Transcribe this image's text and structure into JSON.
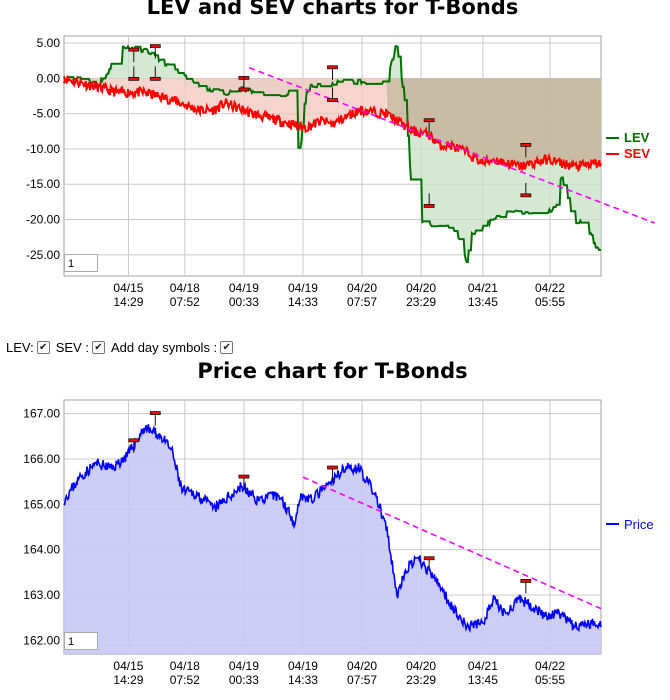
{
  "controls": {
    "lev_label": "LEV:",
    "sev_label": "SEV :",
    "day_label": "Add day symbols :",
    "check_glyph": "✔"
  },
  "zoom_inputs": [
    "1",
    "1"
  ],
  "chart_data": [
    {
      "type": "line",
      "title": "LEV and SEV charts for T-Bonds",
      "ylim": [
        -28,
        6
      ],
      "yticks": [
        5,
        0,
        -5,
        -10,
        -15,
        -20,
        -25
      ],
      "ytick_labels": [
        "5.00",
        "0.00",
        "-5.00",
        "-10.00",
        "-15.00",
        "-20.00",
        "-25.00"
      ],
      "x_ticks": [
        {
          "x": 0.12,
          "date": "04/15",
          "time": "14:29"
        },
        {
          "x": 0.225,
          "date": "04/18",
          "time": "07:52"
        },
        {
          "x": 0.335,
          "date": "04/19",
          "time": "00:33"
        },
        {
          "x": 0.445,
          "date": "04/19",
          "time": "14:33"
        },
        {
          "x": 0.555,
          "date": "04/20",
          "time": "07:57"
        },
        {
          "x": 0.665,
          "date": "04/20",
          "time": "23:29"
        },
        {
          "x": 0.78,
          "date": "04/21",
          "time": "13:45"
        },
        {
          "x": 0.905,
          "date": "04/22",
          "time": "05:55"
        }
      ],
      "legend_position": "right",
      "series": [
        {
          "name": "LEV",
          "color": "#007000",
          "x": [
            0,
            0.03,
            0.06,
            0.075,
            0.09,
            0.1,
            0.15,
            0.2,
            0.22,
            0.26,
            0.3,
            0.335,
            0.37,
            0.38,
            0.42,
            0.43,
            0.44,
            0.45,
            0.46,
            0.48,
            0.52,
            0.58,
            0.6,
            0.62,
            0.63,
            0.635,
            0.64,
            0.65,
            0.66,
            0.68,
            0.7,
            0.72,
            0.74,
            0.75,
            0.76,
            0.78,
            0.8,
            0.82,
            0.85,
            0.88,
            0.9,
            0.92,
            0.925,
            0.94,
            0.95,
            0.97,
            0.99,
            1.0
          ],
          "values": [
            0,
            0,
            -1,
            0,
            2,
            4.5,
            4,
            1.5,
            0.5,
            -1.5,
            -2,
            -1.5,
            -2,
            -3,
            -2,
            -8,
            -11,
            -2,
            -1,
            -1,
            -0.5,
            -0.5,
            0,
            5,
            -1,
            -3,
            -8,
            -18,
            -20.5,
            -20.5,
            -21,
            -21,
            -23,
            -26,
            -22,
            -21,
            -20,
            -19,
            -19,
            -19,
            -19,
            -18,
            -14,
            -17,
            -21,
            -20,
            -24,
            -24
          ]
        },
        {
          "name": "SEV",
          "color": "#ff0000",
          "x": [
            0,
            0.05,
            0.1,
            0.15,
            0.2,
            0.25,
            0.28,
            0.3,
            0.35,
            0.4,
            0.45,
            0.48,
            0.5,
            0.55,
            0.6,
            0.62,
            0.65,
            0.68,
            0.7,
            0.72,
            0.75,
            0.78,
            0.8,
            0.85,
            0.9,
            0.95,
            1.0
          ],
          "values": [
            0,
            -1,
            -2,
            -2,
            -3,
            -4.5,
            -4.5,
            -3.5,
            -5,
            -6,
            -7,
            -6,
            -6.5,
            -4.5,
            -5,
            -6,
            -7.5,
            -8,
            -9.5,
            -9.5,
            -10.5,
            -12,
            -11.5,
            -12.5,
            -11.5,
            -12.5,
            -12
          ]
        }
      ],
      "trend_line": {
        "x": [
          0.345,
          1.1
        ],
        "values": [
          1.5,
          -20.5
        ],
        "color": "#ff00ff"
      },
      "day_symbols_top": [
        {
          "x": 0.13,
          "value": 4
        },
        {
          "x": 0.17,
          "value": 4.5
        },
        {
          "x": 0.335,
          "value": 0
        },
        {
          "x": 0.5,
          "value": 1.5
        },
        {
          "x": 0.68,
          "value": -6
        },
        {
          "x": 0.86,
          "value": -9.5
        }
      ],
      "day_symbols_bottom": [
        {
          "x": 0.13,
          "value": 0
        },
        {
          "x": 0.17,
          "value": 0
        },
        {
          "x": 0.335,
          "value": -1.5
        },
        {
          "x": 0.5,
          "value": -3
        },
        {
          "x": 0.68,
          "value": -18
        },
        {
          "x": 0.86,
          "value": -16.5
        }
      ]
    },
    {
      "type": "area",
      "title": "Price chart for T-Bonds",
      "ylim": [
        161.7,
        167.3
      ],
      "yticks": [
        167,
        166,
        165,
        164,
        163,
        162
      ],
      "ytick_labels": [
        "167.00",
        "166.00",
        "165.00",
        "164.00",
        "163.00",
        "162.00"
      ],
      "x_ticks": [
        {
          "x": 0.12,
          "date": "04/15",
          "time": "14:29"
        },
        {
          "x": 0.225,
          "date": "04/18",
          "time": "07:52"
        },
        {
          "x": 0.335,
          "date": "04/19",
          "time": "00:33"
        },
        {
          "x": 0.445,
          "date": "04/19",
          "time": "14:33"
        },
        {
          "x": 0.555,
          "date": "04/20",
          "time": "07:57"
        },
        {
          "x": 0.665,
          "date": "04/20",
          "time": "23:29"
        },
        {
          "x": 0.78,
          "date": "04/21",
          "time": "13:45"
        },
        {
          "x": 0.905,
          "date": "04/22",
          "time": "05:55"
        }
      ],
      "legend_position": "right",
      "series": [
        {
          "name": "Price",
          "color": "#0000ff",
          "x": [
            0,
            0.03,
            0.06,
            0.09,
            0.12,
            0.15,
            0.18,
            0.2,
            0.22,
            0.25,
            0.28,
            0.3,
            0.33,
            0.36,
            0.4,
            0.42,
            0.43,
            0.44,
            0.46,
            0.5,
            0.52,
            0.55,
            0.58,
            0.6,
            0.62,
            0.64,
            0.66,
            0.68,
            0.7,
            0.72,
            0.75,
            0.78,
            0.8,
            0.82,
            0.85,
            0.88,
            0.9,
            0.92,
            0.95,
            1.0
          ],
          "values": [
            165.1,
            165.6,
            165.9,
            165.8,
            166.1,
            166.7,
            166.5,
            166.2,
            165.3,
            165.2,
            164.9,
            165.1,
            165.4,
            165.1,
            165.2,
            164.8,
            164.6,
            165.2,
            165.1,
            165.5,
            165.8,
            165.8,
            165.2,
            164.5,
            163.0,
            163.6,
            163.8,
            163.5,
            163.2,
            162.8,
            162.3,
            162.4,
            162.9,
            162.6,
            162.9,
            162.7,
            162.5,
            162.6,
            162.3,
            162.4
          ]
        }
      ],
      "trend_line": {
        "x": [
          0.445,
          1.0
        ],
        "values": [
          165.6,
          162.7
        ],
        "color": "#ff00ff"
      },
      "day_symbols_top": [
        {
          "x": 0.13,
          "value": 166.4
        },
        {
          "x": 0.17,
          "value": 167.0
        },
        {
          "x": 0.335,
          "value": 165.6
        },
        {
          "x": 0.5,
          "value": 165.8
        },
        {
          "x": 0.68,
          "value": 163.8
        },
        {
          "x": 0.86,
          "value": 163.3
        }
      ]
    }
  ]
}
